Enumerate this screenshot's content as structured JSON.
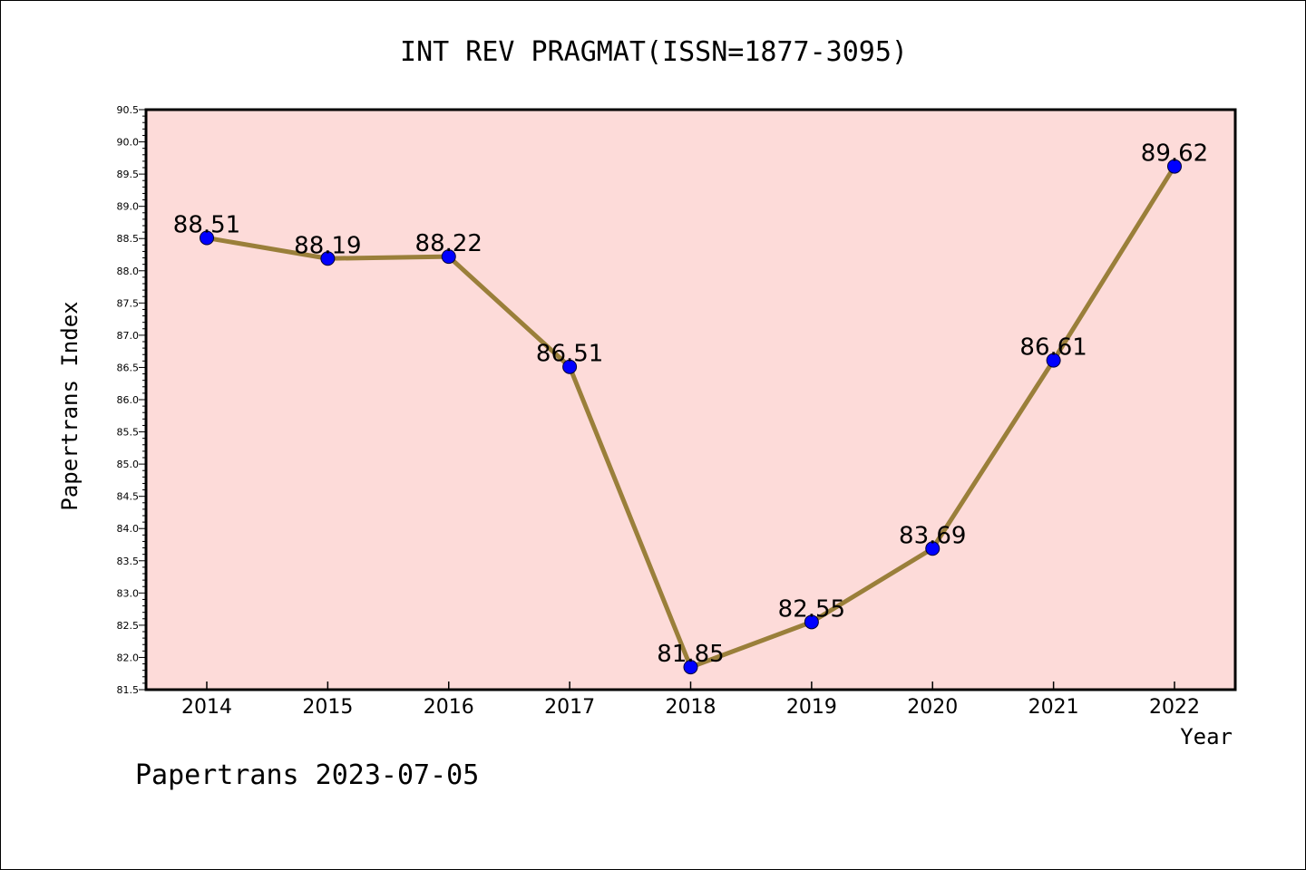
{
  "chart_data": {
    "type": "line",
    "title": "INT REV PRAGMAT(ISSN=1877-3095)",
    "xlabel": "Year",
    "ylabel": "Papertrans Index",
    "categories": [
      "2014",
      "2015",
      "2016",
      "2017",
      "2018",
      "2019",
      "2020",
      "2021",
      "2022"
    ],
    "series": [
      {
        "values": [
          88.51,
          88.19,
          88.22,
          86.51,
          81.85,
          82.55,
          83.69,
          86.61,
          89.62
        ],
        "data_labels": [
          "88.51",
          "88.19",
          "88.22",
          "86.51",
          "81.85",
          "82.55",
          "83.69",
          "86.61",
          "89.62"
        ],
        "line_color": "#9a7f3a",
        "marker_color": "#0000ff"
      }
    ],
    "ylim": [
      81.5,
      90.5
    ],
    "y_ticks": [
      "81.5",
      "82.0",
      "82.5",
      "83.0",
      "83.5",
      "84.0",
      "84.5",
      "85.0",
      "85.5",
      "86.0",
      "86.5",
      "87.0",
      "87.5",
      "88.0",
      "88.5",
      "89.0",
      "89.5",
      "90.0",
      "90.5"
    ],
    "plot_background": "#fddbd9",
    "grid": false
  },
  "footer": {
    "text": "Papertrans 2023-07-05"
  }
}
